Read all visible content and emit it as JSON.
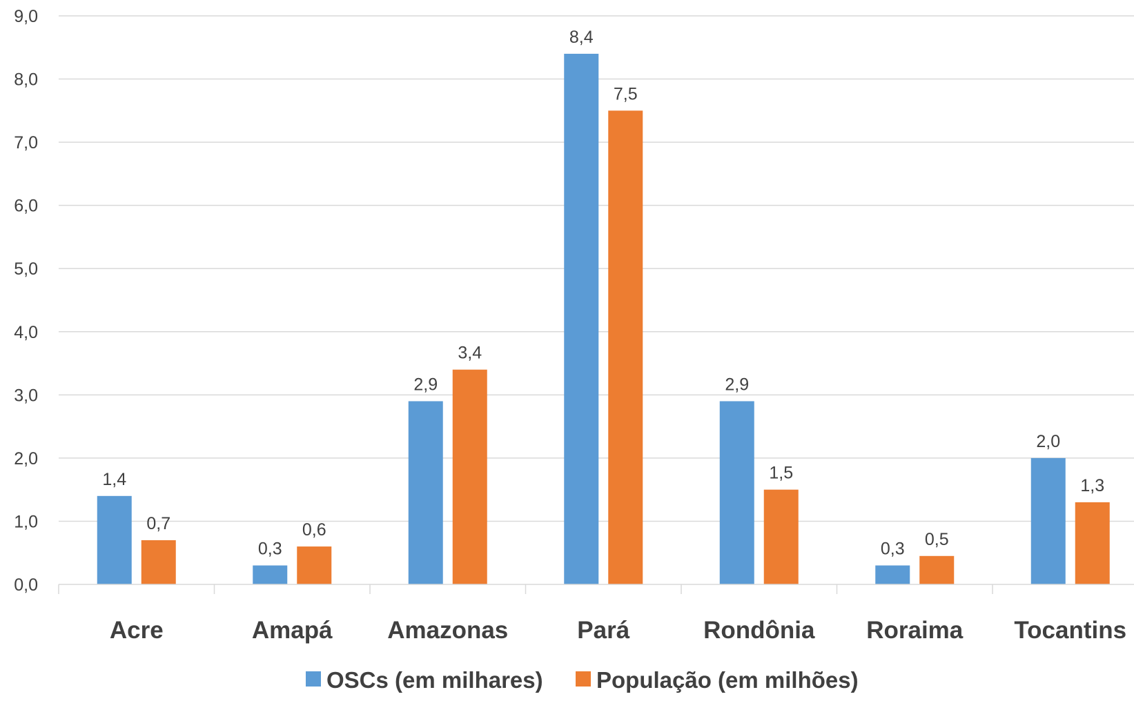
{
  "chart_data": {
    "type": "bar",
    "title": "",
    "xlabel": "",
    "ylabel": "",
    "ylim": [
      0,
      9
    ],
    "y_ticks": [
      "0,0",
      "1,0",
      "2,0",
      "3,0",
      "4,0",
      "5,0",
      "6,0",
      "7,0",
      "8,0",
      "9,0"
    ],
    "grid": true,
    "legend_position": "bottom",
    "categories": [
      "Acre",
      "Amapá",
      "Amazonas",
      "Pará",
      "Rondônia",
      "Roraima",
      "Tocantins"
    ],
    "series": [
      {
        "name": "OSCs (em milhares)",
        "color": "#5B9BD5",
        "values": [
          1.4,
          0.3,
          2.9,
          8.4,
          2.9,
          0.3,
          2.0
        ],
        "labels": [
          "1,4",
          "0,3",
          "2,9",
          "8,4",
          "2,9",
          "0,3",
          "2,0"
        ]
      },
      {
        "name": "População (em milhões)",
        "color": "#ED7D31",
        "values": [
          0.7,
          0.6,
          3.4,
          7.5,
          1.5,
          0.45,
          1.3
        ],
        "labels": [
          "0,7",
          "0,6",
          "3,4",
          "7,5",
          "1,5",
          "0,5",
          "1,3"
        ]
      }
    ]
  }
}
